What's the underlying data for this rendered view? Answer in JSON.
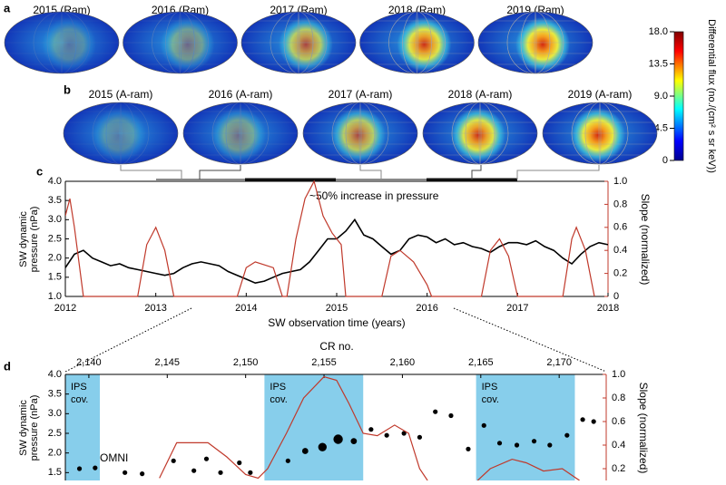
{
  "chart_data": [
    {
      "type": "skymap",
      "panel": "a",
      "titles": [
        "2015 (Ram)",
        "2016 (Ram)",
        "2017 (Ram)",
        "2018 (Ram)",
        "2019 (Ram)"
      ]
    },
    {
      "type": "skymap",
      "panel": "b",
      "titles": [
        "2015 (A-ram)",
        "2016 (A-ram)",
        "2017 (A-ram)",
        "2018 (A-ram)",
        "2019 (A-ram)"
      ]
    },
    {
      "type": "line",
      "panel": "c",
      "xlabel": "SW observation time (years)",
      "ylabel": [
        "SW dynamic",
        "pressure (nPa)"
      ],
      "y2label": "Slope (normalized)",
      "annotation": "~50% increase in pressure",
      "xlim": [
        2012,
        2018
      ],
      "xticks": [
        2012,
        2013,
        2014,
        2015,
        2016,
        2017,
        2018
      ],
      "ylim": [
        1,
        4
      ],
      "yticks": [
        {
          "value": 1,
          "label": "1.0"
        },
        1.5,
        {
          "value": 2,
          "label": "2.0"
        },
        2.5,
        {
          "value": 3,
          "label": "3.0"
        },
        3.5,
        {
          "value": 4,
          "label": "4.0"
        }
      ],
      "y2lim": [
        0,
        1
      ],
      "y2ticks": [
        0,
        0.2,
        0.4,
        0.6,
        0.8,
        {
          "value": 1,
          "label": "1.0"
        }
      ],
      "series": [
        {
          "color": "#000000",
          "axis": "y",
          "x": [
            2012,
            2012.1,
            2012.2,
            2012.3,
            2012.4,
            2012.5,
            2012.6,
            2012.7,
            2012.8,
            2012.9,
            2013,
            2013.1,
            2013.2,
            2013.3,
            2013.4,
            2013.5,
            2013.6,
            2013.7,
            2013.8,
            2013.9,
            2014,
            2014.1,
            2014.2,
            2014.3,
            2014.4,
            2014.5,
            2014.6,
            2014.7,
            2014.8,
            2014.9,
            2015,
            2015.1,
            2015.2,
            2015.3,
            2015.4,
            2015.5,
            2015.6,
            2015.7,
            2015.8,
            2015.9,
            2016,
            2016.1,
            2016.2,
            2016.3,
            2016.4,
            2016.5,
            2016.6,
            2016.7,
            2016.8,
            2016.9,
            2017,
            2017.1,
            2017.2,
            2017.3,
            2017.4,
            2017.5,
            2017.6,
            2017.7,
            2017.8,
            2017.9,
            2018
          ],
          "values": [
            1.75,
            2.1,
            2.2,
            2.0,
            1.9,
            1.8,
            1.85,
            1.75,
            1.7,
            1.65,
            1.6,
            1.55,
            1.6,
            1.75,
            1.85,
            1.9,
            1.85,
            1.8,
            1.65,
            1.55,
            1.45,
            1.35,
            1.4,
            1.5,
            1.6,
            1.65,
            1.7,
            1.9,
            2.2,
            2.5,
            2.5,
            2.7,
            3.0,
            2.6,
            2.5,
            2.3,
            2.1,
            2.2,
            2.5,
            2.6,
            2.55,
            2.4,
            2.5,
            2.35,
            2.4,
            2.3,
            2.25,
            2.15,
            2.3,
            2.4,
            2.4,
            2.35,
            2.45,
            2.3,
            2.2,
            2.0,
            1.85,
            2.1,
            2.3,
            2.4,
            2.35
          ]
        },
        {
          "color": "#c0392b",
          "axis": "y2",
          "x": [
            2012,
            2012.05,
            2012.1,
            2012.2,
            2012.8,
            2012.9,
            2013,
            2013.1,
            2013.2,
            2013.9,
            2014,
            2014.1,
            2014.3,
            2014.4,
            2014.45,
            2014.55,
            2014.65,
            2014.75,
            2014.85,
            2014.95,
            2015.05,
            2015.1,
            2015.5,
            2015.6,
            2015.7,
            2015.85,
            2016,
            2016.05,
            2016.6,
            2016.7,
            2016.8,
            2016.9,
            2017,
            2017.5,
            2017.6,
            2017.65,
            2017.75,
            2017.85
          ],
          "values": [
            0.7,
            0.85,
            0.6,
            0,
            0,
            0.45,
            0.6,
            0.4,
            0,
            0,
            0.25,
            0.3,
            0.25,
            0,
            0,
            0.5,
            0.85,
            1.0,
            0.7,
            0.55,
            0.45,
            0,
            0,
            0.35,
            0.4,
            0.3,
            0.1,
            0,
            0,
            0.4,
            0.5,
            0.35,
            0,
            0,
            0.5,
            0.6,
            0.4,
            0
          ]
        }
      ]
    },
    {
      "type": "scatter",
      "panel": "d",
      "xlabel": "CR no.",
      "ylabel": [
        "SW dynamic",
        "pressure (nPa)"
      ],
      "y2label": "Slope (normalized)",
      "xlim": [
        2138.5,
        2173
      ],
      "xticks": [
        {
          "value": 2140,
          "label": "2,140"
        },
        {
          "value": 2145,
          "label": "2,145"
        },
        {
          "value": 2150,
          "label": "2,150"
        },
        {
          "value": 2155,
          "label": "2,155"
        },
        {
          "value": 2160,
          "label": "2,160"
        },
        {
          "value": 2165,
          "label": "2,165"
        },
        {
          "value": 2170,
          "label": "2,170"
        }
      ],
      "ylim": [
        1.3,
        4
      ],
      "yticks": [
        1.5,
        {
          "value": 2,
          "label": "2.0"
        },
        2.5,
        {
          "value": 3,
          "label": "3.0"
        },
        3.5,
        {
          "value": 4,
          "label": "4.0"
        }
      ],
      "y2lim": [
        0.1,
        1
      ],
      "y2ticks": [
        0.2,
        0.4,
        0.6,
        0.8,
        {
          "value": 1,
          "label": "1.0"
        }
      ],
      "shaded": [
        {
          "range": [
            2138.5,
            2140.7
          ],
          "label": "IPS cov."
        },
        {
          "range": [
            2151.2,
            2157.5
          ],
          "label": "IPS cov."
        },
        {
          "range": [
            2164.7,
            2171
          ],
          "label": "IPS cov."
        }
      ],
      "shade_color": "#87ceeb",
      "series": [
        {
          "name": "OMNI",
          "color": "#000000",
          "axis": "y",
          "x": [
            2139.4,
            2140.4,
            2142.3,
            2143.4,
            2145.4,
            2146.7,
            2147.5,
            2148.4,
            2149.6,
            2150.3,
            2152.7,
            2153.8,
            2154.9,
            2155.9,
            2156.9,
            2158,
            2159,
            2160.1,
            2161.1,
            2162.1,
            2163.1,
            2164.2,
            2165.2,
            2166.2,
            2167.3,
            2168.4,
            2169.4,
            2170.5,
            2171.5,
            2172.2
          ],
          "values": [
            1.6,
            1.62,
            1.5,
            1.47,
            1.8,
            1.55,
            1.85,
            1.5,
            1.75,
            1.5,
            1.8,
            2.05,
            2.15,
            2.35,
            2.3,
            2.6,
            2.45,
            2.5,
            2.4,
            3.05,
            2.95,
            2.1,
            2.7,
            2.25,
            2.2,
            2.3,
            2.2,
            2.45,
            2.85,
            2.8
          ],
          "sizes": [
            1,
            1,
            1,
            1,
            1,
            1,
            1,
            1,
            1,
            1,
            1,
            1.3,
            1.8,
            2,
            1.3,
            1,
            1,
            1,
            1,
            1,
            1,
            1,
            1,
            1,
            1,
            1,
            1,
            1,
            1,
            1
          ]
        },
        {
          "color": "#c0392b",
          "axis": "y2",
          "x": [
            2144.5,
            2145.6,
            2147.6,
            2148.8,
            2150,
            2150.8,
            2151.4,
            2152.6,
            2153.7,
            2155,
            2155.8,
            2156.6,
            2157.5,
            2158.4,
            2159.5,
            2160.4,
            2161.1,
            2161.6,
            2163,
            2164.8,
            2165.6,
            2167,
            2167.9,
            2169,
            2170.2,
            2171.3
          ],
          "values": [
            0.12,
            0.42,
            0.42,
            0.3,
            0.15,
            0.12,
            0.2,
            0.5,
            0.8,
            0.98,
            0.95,
            0.75,
            0.5,
            0.48,
            0.57,
            0.5,
            0.2,
            0.1,
            null,
            0.1,
            0.2,
            0.28,
            0.25,
            0.18,
            0.2,
            0.1
          ]
        }
      ]
    }
  ],
  "colorbar": {
    "label": "Differential flux (no./(cm² s sr keV))",
    "lim": [
      0,
      18
    ],
    "ticks": [
      0,
      4.5,
      {
        "value": 9,
        "label": "9.0"
      },
      13.5,
      {
        "value": 18,
        "label": "18.0"
      }
    ]
  }
}
